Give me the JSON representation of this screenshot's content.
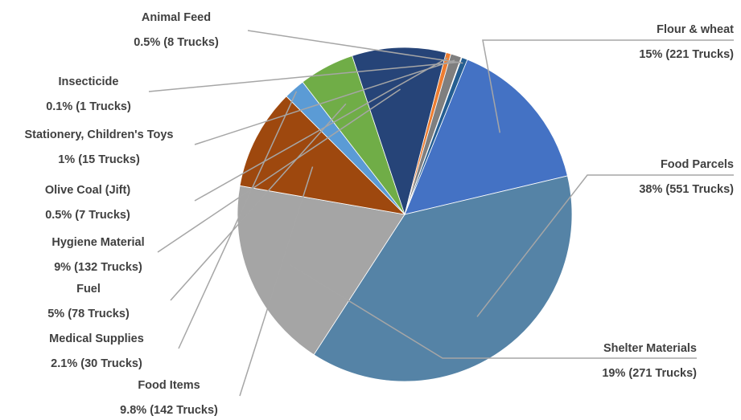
{
  "chart_data": {
    "type": "pie",
    "title": "",
    "slices": [
      {
        "label": "Flour & wheat",
        "value": 221,
        "value_label": "15% (221 Trucks)",
        "color": "#4472C4"
      },
      {
        "label": "Food Parcels",
        "value": 551,
        "value_label": "38% (551 Trucks)",
        "color": "#5583A6"
      },
      {
        "label": "Shelter Materials",
        "value": 271,
        "value_label": "19% (271 Trucks)",
        "color": "#A5A5A5"
      },
      {
        "label": "Food Items",
        "value": 142,
        "value_label": "9.8% (142 Trucks)",
        "color": "#9E480E"
      },
      {
        "label": "Medical Supplies",
        "value": 30,
        "value_label": "2.1% (30 Trucks)",
        "color": "#5B9BD5"
      },
      {
        "label": "Fuel",
        "value": 78,
        "value_label": "5% (78 Trucks)",
        "color": "#70AD47"
      },
      {
        "label": "Hygiene Material",
        "value": 132,
        "value_label": "9% (132 Trucks)",
        "color": "#264478"
      },
      {
        "label": "Olive Coal (Jift)",
        "value": 7,
        "value_label": "0.5% (7 Trucks)",
        "color": "#ED7D31"
      },
      {
        "label": "Stationery, Children's Toys",
        "value": 15,
        "value_label": "1% (15 Trucks)",
        "color": "#7F7F7F"
      },
      {
        "label": "Insecticide",
        "value": 1,
        "value_label": "0.1% (1 Trucks)",
        "color": "#997300"
      },
      {
        "label": "Animal Feed",
        "value": 8,
        "value_label": "0.5% (8 Trucks)",
        "color": "#255E91"
      }
    ],
    "start_angle_deg": 22,
    "direction": "clockwise",
    "leader_lines": true,
    "legend": "none"
  }
}
